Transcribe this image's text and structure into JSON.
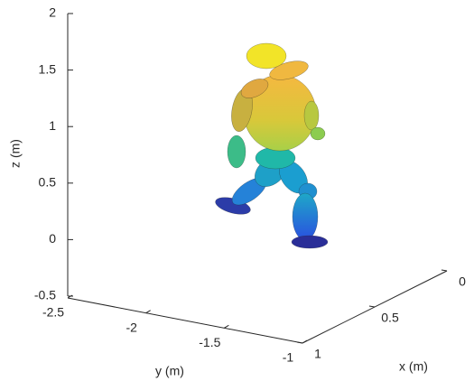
{
  "chart_data": {
    "type": "surface",
    "xlabel": "x (m)",
    "ylabel": "y (m)",
    "zlabel": "z (m)",
    "xlim": [
      0,
      1
    ],
    "xticks": [
      0,
      0.5,
      1
    ],
    "ylim": [
      -2.5,
      -1
    ],
    "yticks": [
      -2.5,
      -2,
      -1.5,
      -1
    ],
    "zlim": [
      -0.5,
      2
    ],
    "zticks": [
      -0.5,
      0,
      0.5,
      1,
      1.5,
      2
    ]
  }
}
